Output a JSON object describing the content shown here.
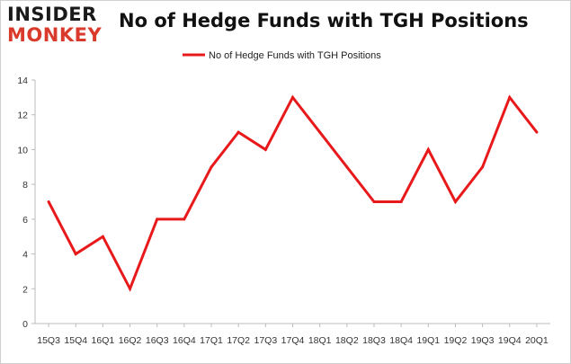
{
  "brand": {
    "logo_line1": "INSIDER",
    "logo_line2": "MONKEY"
  },
  "chart_data": {
    "type": "line",
    "title": "No of Hedge Funds with TGH Positions",
    "categories": [
      "15Q3",
      "15Q4",
      "16Q1",
      "16Q2",
      "16Q3",
      "16Q4",
      "17Q1",
      "17Q2",
      "17Q3",
      "17Q4",
      "18Q1",
      "18Q2",
      "18Q3",
      "18Q4",
      "19Q1",
      "19Q2",
      "19Q3",
      "19Q4",
      "20Q1"
    ],
    "series": [
      {
        "name": "No of Hedge Funds with TGH Positions",
        "color": "#e8191b",
        "values": [
          7,
          4,
          5,
          2,
          6,
          6,
          9,
          11,
          10,
          13,
          11,
          9,
          7,
          7,
          10,
          7,
          9,
          13,
          11
        ]
      }
    ],
    "ylim": [
      0,
      14
    ],
    "yticks": [
      0,
      2,
      4,
      6,
      8,
      10,
      12,
      14
    ],
    "grid": false,
    "legend_position": "top-center",
    "xlabel": "",
    "ylabel": ""
  }
}
